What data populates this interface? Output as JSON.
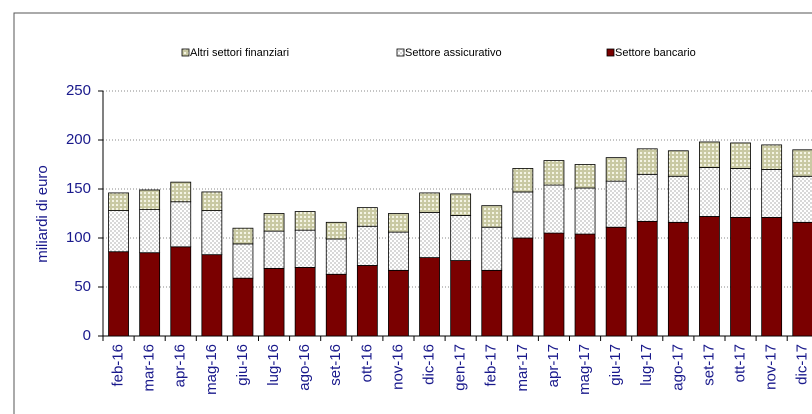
{
  "chart_data": {
    "type": "stacked_bar",
    "y_label": "miliardi di euro",
    "categories": [
      "feb-16",
      "mar-16",
      "apr-16",
      "mag-16",
      "giu-16",
      "lug-16",
      "ago-16",
      "set-16",
      "ott-16",
      "nov-16",
      "dic-16",
      "gen-17",
      "feb-17",
      "mar-17",
      "apr-17",
      "mag-17",
      "giu-17",
      "lug-17",
      "ago-17",
      "set-17",
      "ott-17",
      "nov-17",
      "dic-17"
    ],
    "series": [
      {
        "name": "Settore bancario",
        "color": "#7a0000",
        "values": [
          86,
          85,
          91,
          83,
          59,
          69,
          70,
          63,
          72,
          67,
          80,
          77,
          67,
          100,
          105,
          104,
          111,
          117,
          116,
          122,
          121,
          121,
          116
        ]
      },
      {
        "name": "Settore assicurativo",
        "color": "#bdbdbd",
        "values": [
          42,
          44,
          46,
          45,
          35,
          38,
          38,
          36,
          40,
          39,
          46,
          46,
          44,
          47,
          49,
          47,
          47,
          48,
          47,
          50,
          50,
          49,
          47
        ]
      },
      {
        "name": "Altri settori finanziari",
        "color": "#c9c9a3",
        "values": [
          18,
          20,
          20,
          19,
          16,
          18,
          19,
          17,
          19,
          19,
          20,
          22,
          22,
          24,
          25,
          24,
          24,
          26,
          26,
          26,
          26,
          25,
          27
        ]
      }
    ],
    "ylim": [
      0,
      250
    ],
    "yticks": [
      0,
      50,
      100,
      150,
      200,
      250
    ],
    "grid": true
  }
}
